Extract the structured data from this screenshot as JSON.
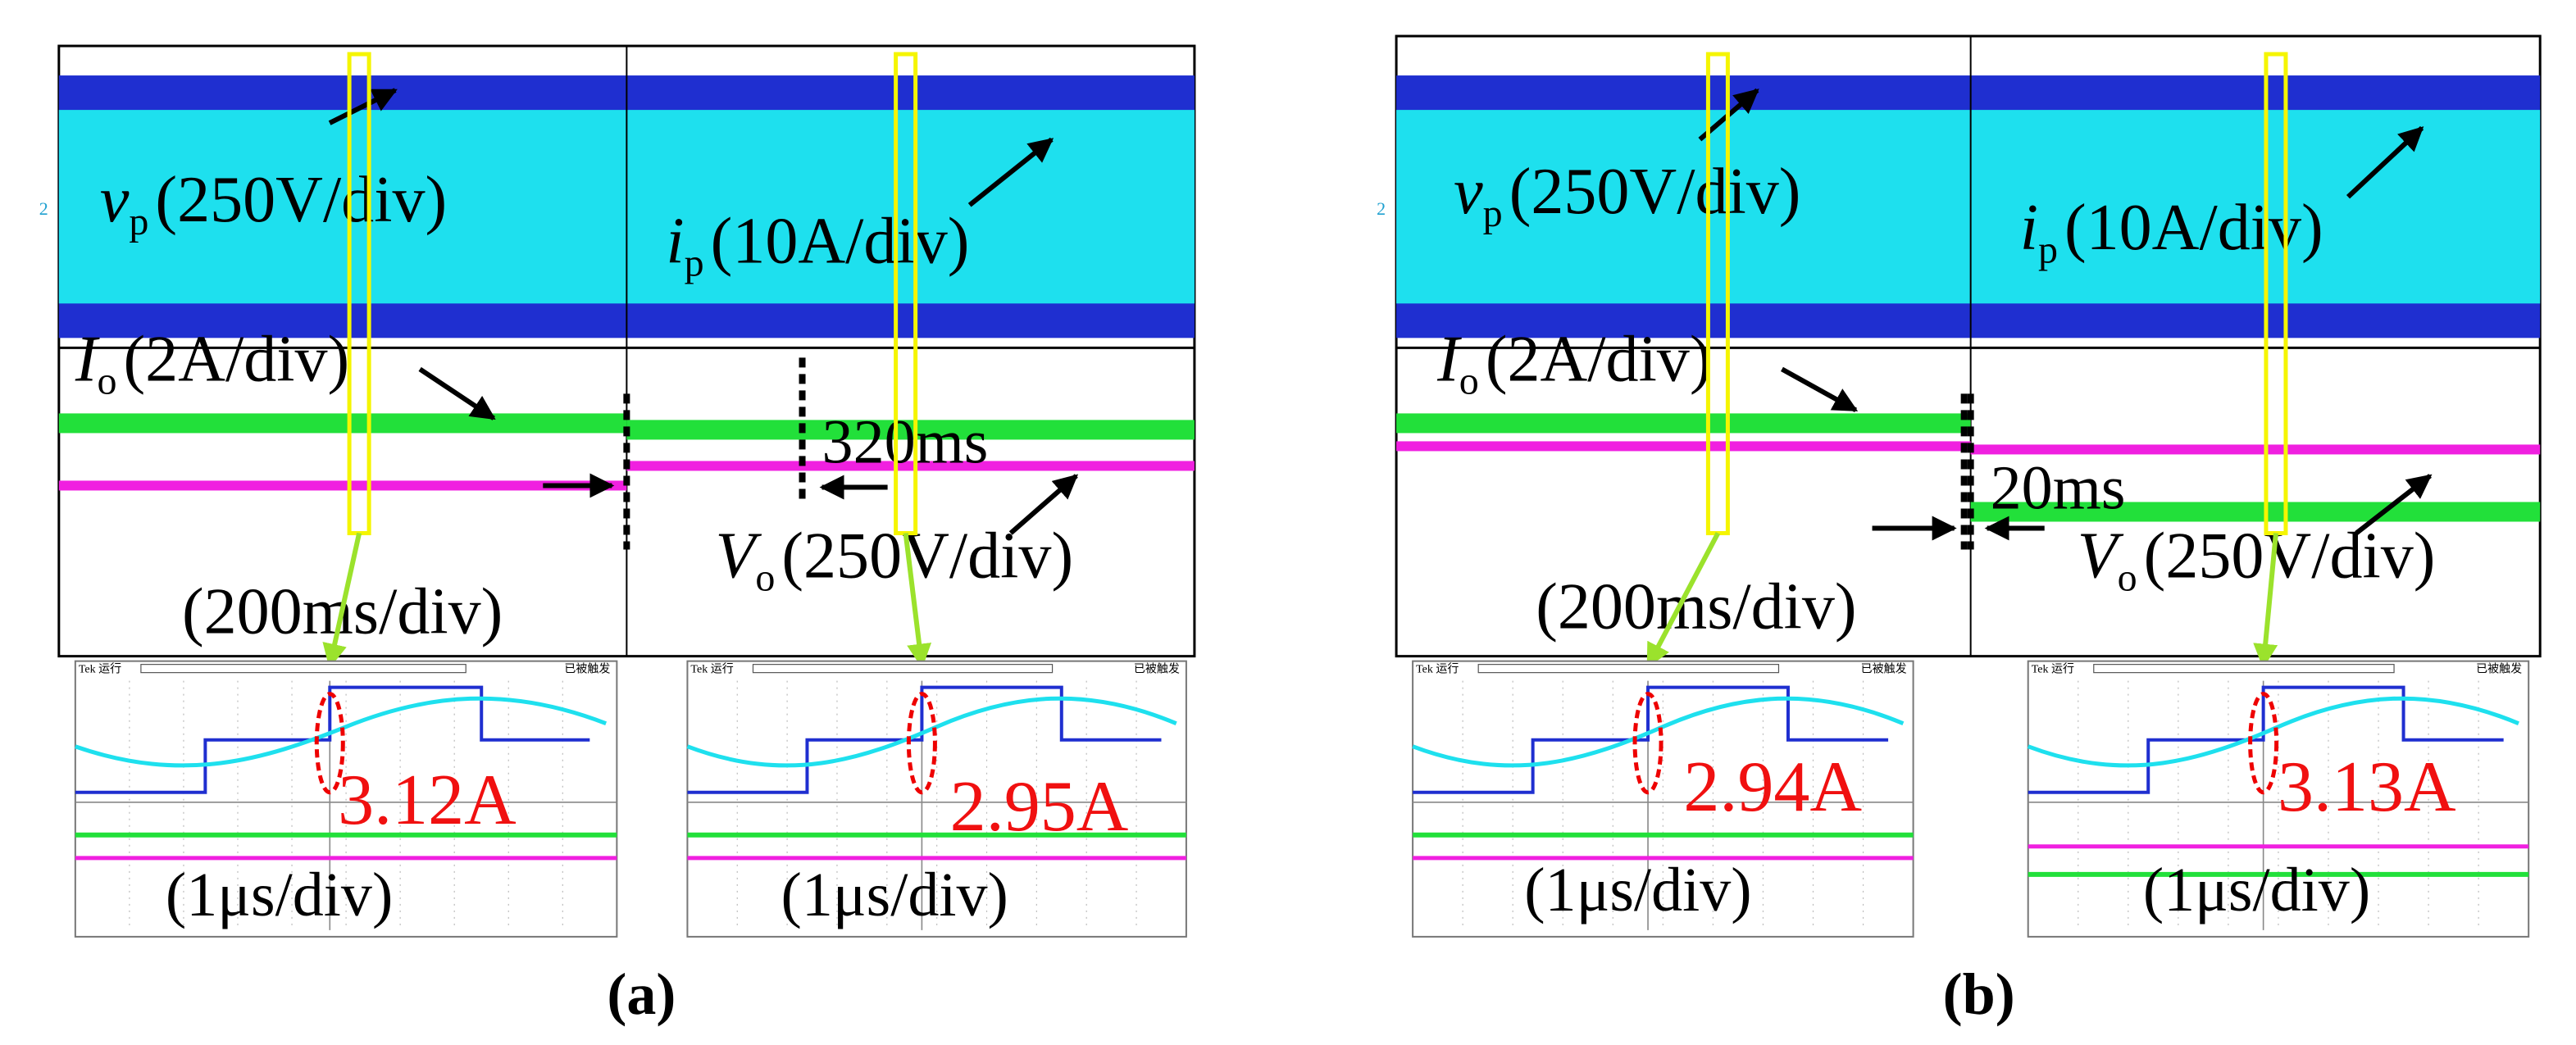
{
  "panels": [
    {
      "label": "(a)",
      "scope": {
        "channel_marker": "2",
        "vp": {
          "symbol": "v",
          "sub": "p",
          "scale": "(250V/div)"
        },
        "ip": {
          "symbol": "i",
          "sub": "p",
          "scale": "(10A/div)"
        },
        "io": {
          "symbol": "I",
          "sub": "o",
          "scale": "(2A/div)"
        },
        "vo": {
          "symbol": "V",
          "sub": "o",
          "scale": "(250V/div)"
        },
        "timebase": "(200ms/div)",
        "delay": "320ms"
      },
      "zooms": [
        {
          "header_left": "Tek 运行",
          "header_right": "已被触发",
          "current": "3.12A",
          "timebase": "(1μs/div)"
        },
        {
          "header_left": "Tek 运行",
          "header_right": "已被触发",
          "current": "2.95A",
          "timebase": "(1μs/div)"
        }
      ]
    },
    {
      "label": "(b)",
      "scope": {
        "channel_marker": "2",
        "vp": {
          "symbol": "v",
          "sub": "p",
          "scale": "(250V/div)"
        },
        "ip": {
          "symbol": "i",
          "sub": "p",
          "scale": "(10A/div)"
        },
        "io": {
          "symbol": "I",
          "sub": "o",
          "scale": "(2A/div)"
        },
        "vo": {
          "symbol": "V",
          "sub": "o",
          "scale": "(250V/div)"
        },
        "timebase": "(200ms/div)",
        "delay": "20ms"
      },
      "zooms": [
        {
          "header_left": "Tek 运行",
          "header_right": "已被触发",
          "current": "2.94A",
          "timebase": "(1μs/div)"
        },
        {
          "header_left": "Tek 运行",
          "header_right": "已被触发",
          "current": "3.13A",
          "timebase": "(1μs/div)"
        }
      ]
    }
  ]
}
